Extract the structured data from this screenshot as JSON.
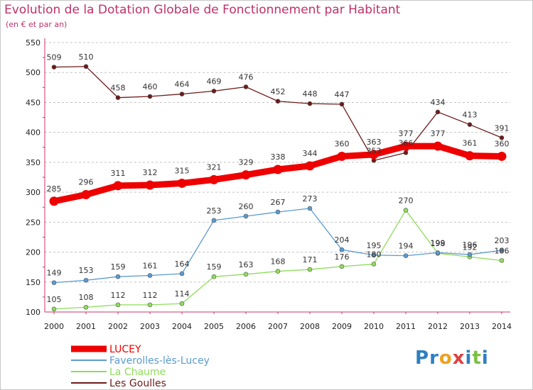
{
  "title": "Evolution de la Dotation Globale de Fonctionnement par Habitant",
  "subtitle": "(en € et par an)",
  "logo": {
    "letters": [
      "P",
      "r",
      "o",
      "x",
      "i",
      "t",
      "i"
    ],
    "colors": [
      "#2f7fc1",
      "#2f7fc1",
      "#f0a020",
      "#e04040",
      "#2f7fc1",
      "#7ac143",
      "#2f7fc1"
    ]
  },
  "chart_data": {
    "type": "line",
    "title": "Evolution de la Dotation Globale de Fonctionnement par Habitant",
    "ylabel": "(en € et par an)",
    "xlabel": "",
    "ylim": [
      100,
      550
    ],
    "yticks": [
      100,
      150,
      200,
      250,
      300,
      350,
      400,
      450,
      500,
      550
    ],
    "categories": [
      "2000",
      "2001",
      "2002",
      "2003",
      "2004",
      "2005",
      "2006",
      "2007",
      "2008",
      "2009",
      "2010",
      "2011",
      "2012",
      "2013",
      "2014"
    ],
    "grid": "horizontal-dashed",
    "series": [
      {
        "name": "Les Goulles",
        "color": "#6e1a1a",
        "values": [
          509,
          510,
          458,
          460,
          464,
          469,
          476,
          452,
          448,
          447,
          353,
          366,
          434,
          413,
          391
        ],
        "labels": [
          "509",
          "510",
          "458",
          "460",
          "464",
          "469",
          "476",
          "452",
          "448",
          "447",
          "353",
          "366",
          "434",
          "413",
          "391"
        ]
      },
      {
        "name": "La Chaume",
        "color": "#8fdc5c",
        "values": [
          105,
          108,
          112,
          112,
          114,
          159,
          163,
          168,
          171,
          176,
          180,
          270,
          198,
          192,
          186
        ],
        "labels": [
          "105",
          "108",
          "112",
          "112",
          "114",
          "159",
          "163",
          "168",
          "171",
          "176",
          "180",
          "270",
          "198",
          "192",
          "186"
        ]
      },
      {
        "name": "Faverolles-lès-Lucey",
        "color": "#5b9bd1",
        "values": [
          149,
          153,
          159,
          161,
          164,
          253,
          260,
          267,
          273,
          204,
          195,
          194,
          199,
          196,
          203
        ],
        "labels": [
          "149",
          "153",
          "159",
          "161",
          "164",
          "253",
          "260",
          "267",
          "273",
          "204",
          "195",
          "194",
          "199",
          "196",
          "203"
        ]
      },
      {
        "name": "LUCEY",
        "color": "#ee0000",
        "values": [
          285,
          296,
          311,
          312,
          315,
          321,
          329,
          338,
          344,
          360,
          363,
          377,
          377,
          361,
          360
        ],
        "labels": [
          "285",
          "296",
          "311",
          "312",
          "315",
          "321",
          "329",
          "338",
          "344",
          "360",
          "363",
          "377",
          "377",
          "361",
          "360"
        ]
      }
    ],
    "legend": [
      "LUCEY",
      "Faverolles-lès-Lucey",
      "La Chaume",
      "Les Goulles"
    ],
    "legend_position": "bottom-left"
  }
}
